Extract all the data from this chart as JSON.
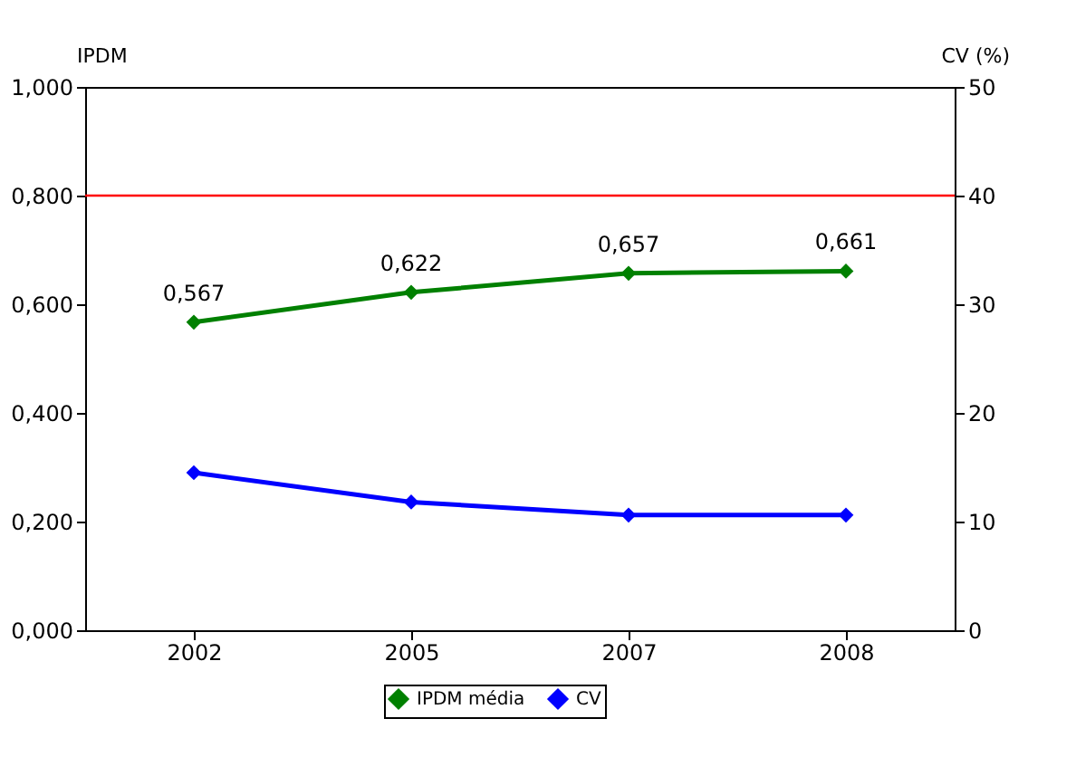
{
  "chart_data": {
    "type": "line",
    "ylabel": "IPDM",
    "y2label": "CV (%)",
    "categories": [
      "2002",
      "2005",
      "2007",
      "2008"
    ],
    "series": [
      {
        "name": "IPDM média",
        "color": "#008000",
        "values": [
          0.567,
          0.622,
          0.657,
          0.661
        ],
        "value_labels": [
          "0,567",
          "0,622",
          "0,657",
          "0,661"
        ]
      },
      {
        "name": "CV",
        "color": "#0000ff",
        "values": [
          14.5,
          11.8,
          10.6,
          10.6
        ],
        "axis": "y2"
      }
    ],
    "ylim": [
      0,
      1
    ],
    "yticks": [
      {
        "value": 0,
        "label": "0,000"
      },
      {
        "value": 0.2,
        "label": "0,200"
      },
      {
        "value": 0.4,
        "label": "0,400"
      },
      {
        "value": 0.6,
        "label": "0,600"
      },
      {
        "value": 0.8,
        "label": "0,800"
      },
      {
        "value": 1,
        "label": "1,000"
      }
    ],
    "y2lim": [
      0,
      50
    ],
    "y2ticks": [
      0,
      10,
      20,
      30,
      40,
      50
    ],
    "ref_lines": [
      {
        "axis": "y",
        "value": 0.8,
        "color": "#ff0000"
      }
    ],
    "legend": "bottom",
    "grid": false,
    "marker": "diamond",
    "line_style": "solid"
  }
}
